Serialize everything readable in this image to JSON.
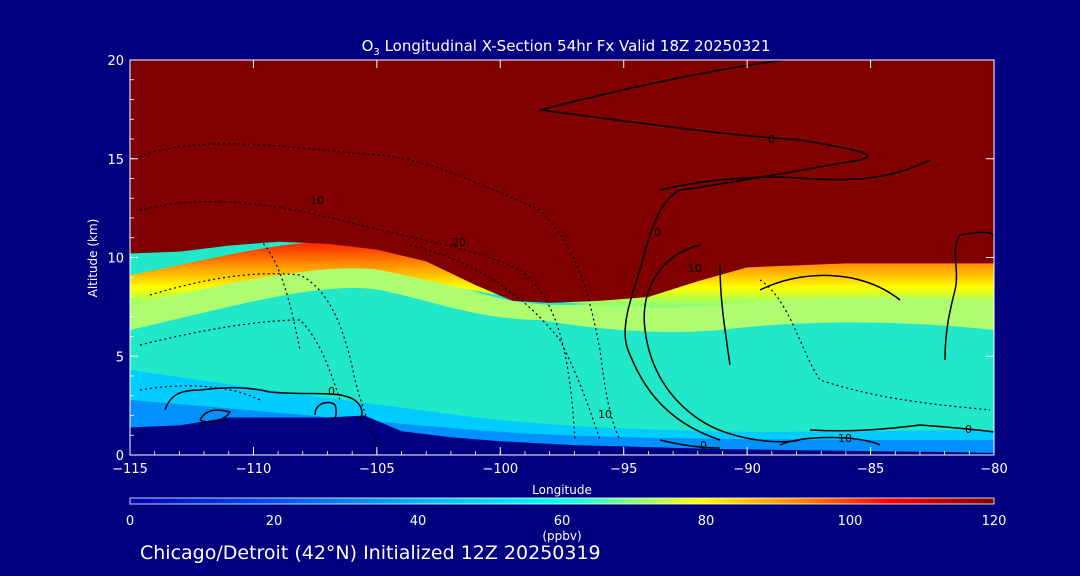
{
  "chart_data": {
    "type": "heatmap",
    "title_prefix": "O",
    "title_sub": "3",
    "title_rest": " Longitudinal X-Section 54hr  Fx Valid 18Z 20250321",
    "xlabel": "Longitude",
    "ylabel": "Altitude (km)",
    "xlim": [
      -115,
      -80
    ],
    "ylim": [
      0,
      20
    ],
    "x_ticks": [
      -115,
      -110,
      -105,
      -100,
      -95,
      -90,
      -85,
      -80
    ],
    "x_tick_labels": [
      "−115",
      "−110",
      "−105",
      "−100",
      "−95",
      "−90",
      "−85",
      "−80"
    ],
    "y_ticks": [
      0,
      5,
      10,
      15,
      20
    ],
    "y_tick_labels": [
      "0",
      "5",
      "10",
      "15",
      "20"
    ],
    "colorbar": {
      "label": "(ppbv)",
      "range": [
        0,
        120
      ],
      "ticks": [
        0,
        20,
        40,
        60,
        80,
        100,
        120
      ],
      "tick_labels": [
        "0",
        "20",
        "40",
        "60",
        "80",
        "100",
        "120"
      ],
      "colors": [
        "#0000b0",
        "#0050ff",
        "#00b4ff",
        "#00ffff",
        "#ffff00",
        "#ff8000",
        "#ff0000",
        "#800000"
      ]
    },
    "tropopause_height_km": {
      "longitude": [
        -115,
        -113,
        -111,
        -109,
        -107,
        -105,
        -103,
        -101,
        -99.5,
        -98,
        -96,
        -94,
        -92,
        -90,
        -88,
        -86,
        -84,
        -82,
        -80
      ],
      "altitude": [
        10.2,
        10.3,
        10.6,
        10.8,
        10.7,
        10.4,
        9.8,
        8.6,
        7.8,
        7.7,
        7.8,
        8.0,
        8.8,
        9.5,
        9.6,
        9.7,
        9.7,
        9.7,
        9.7
      ]
    },
    "terrain_km": {
      "longitude": [
        -115,
        -113,
        -111,
        -109,
        -107,
        -105.5,
        -104,
        -102,
        -100,
        -97,
        -94,
        -91,
        -88,
        -85,
        -82,
        -80
      ],
      "altitude": [
        1.4,
        1.5,
        1.9,
        1.9,
        1.9,
        2.0,
        1.2,
        0.9,
        0.7,
        0.5,
        0.4,
        0.3,
        0.25,
        0.2,
        0.15,
        0.1
      ]
    },
    "contour_labels": [
      "0",
      "10",
      "20",
      "10",
      "0",
      "10",
      "0",
      "0",
      "10",
      "0"
    ],
    "caption": "Chicago/Detroit (42°N) Initialized 12Z 20250319"
  }
}
